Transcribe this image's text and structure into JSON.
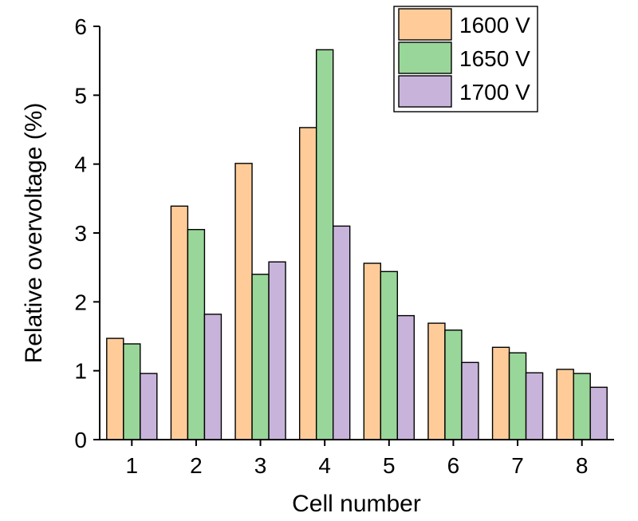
{
  "chart_data": {
    "type": "bar",
    "categories": [
      "1",
      "2",
      "3",
      "4",
      "5",
      "6",
      "7",
      "8"
    ],
    "series": [
      {
        "name": "1600 V",
        "color": "#FFCC99",
        "values": [
          1.47,
          3.39,
          4.01,
          4.53,
          2.56,
          1.69,
          1.34,
          1.02
        ]
      },
      {
        "name": "1650 V",
        "color": "#99D699",
        "values": [
          1.39,
          3.05,
          2.4,
          5.66,
          2.44,
          1.59,
          1.26,
          0.96
        ]
      },
      {
        "name": "1700 V",
        "color": "#C8B4DB",
        "values": [
          0.96,
          1.82,
          2.58,
          3.1,
          1.8,
          1.12,
          0.97,
          0.76
        ]
      }
    ],
    "xlabel": "Cell number",
    "ylabel": "Relative overvoltage (%)",
    "ylim": [
      0,
      6
    ],
    "yticks": [
      "0",
      "1",
      "2",
      "3",
      "4",
      "5",
      "6"
    ],
    "grid": false,
    "legend_position": "top-right"
  }
}
